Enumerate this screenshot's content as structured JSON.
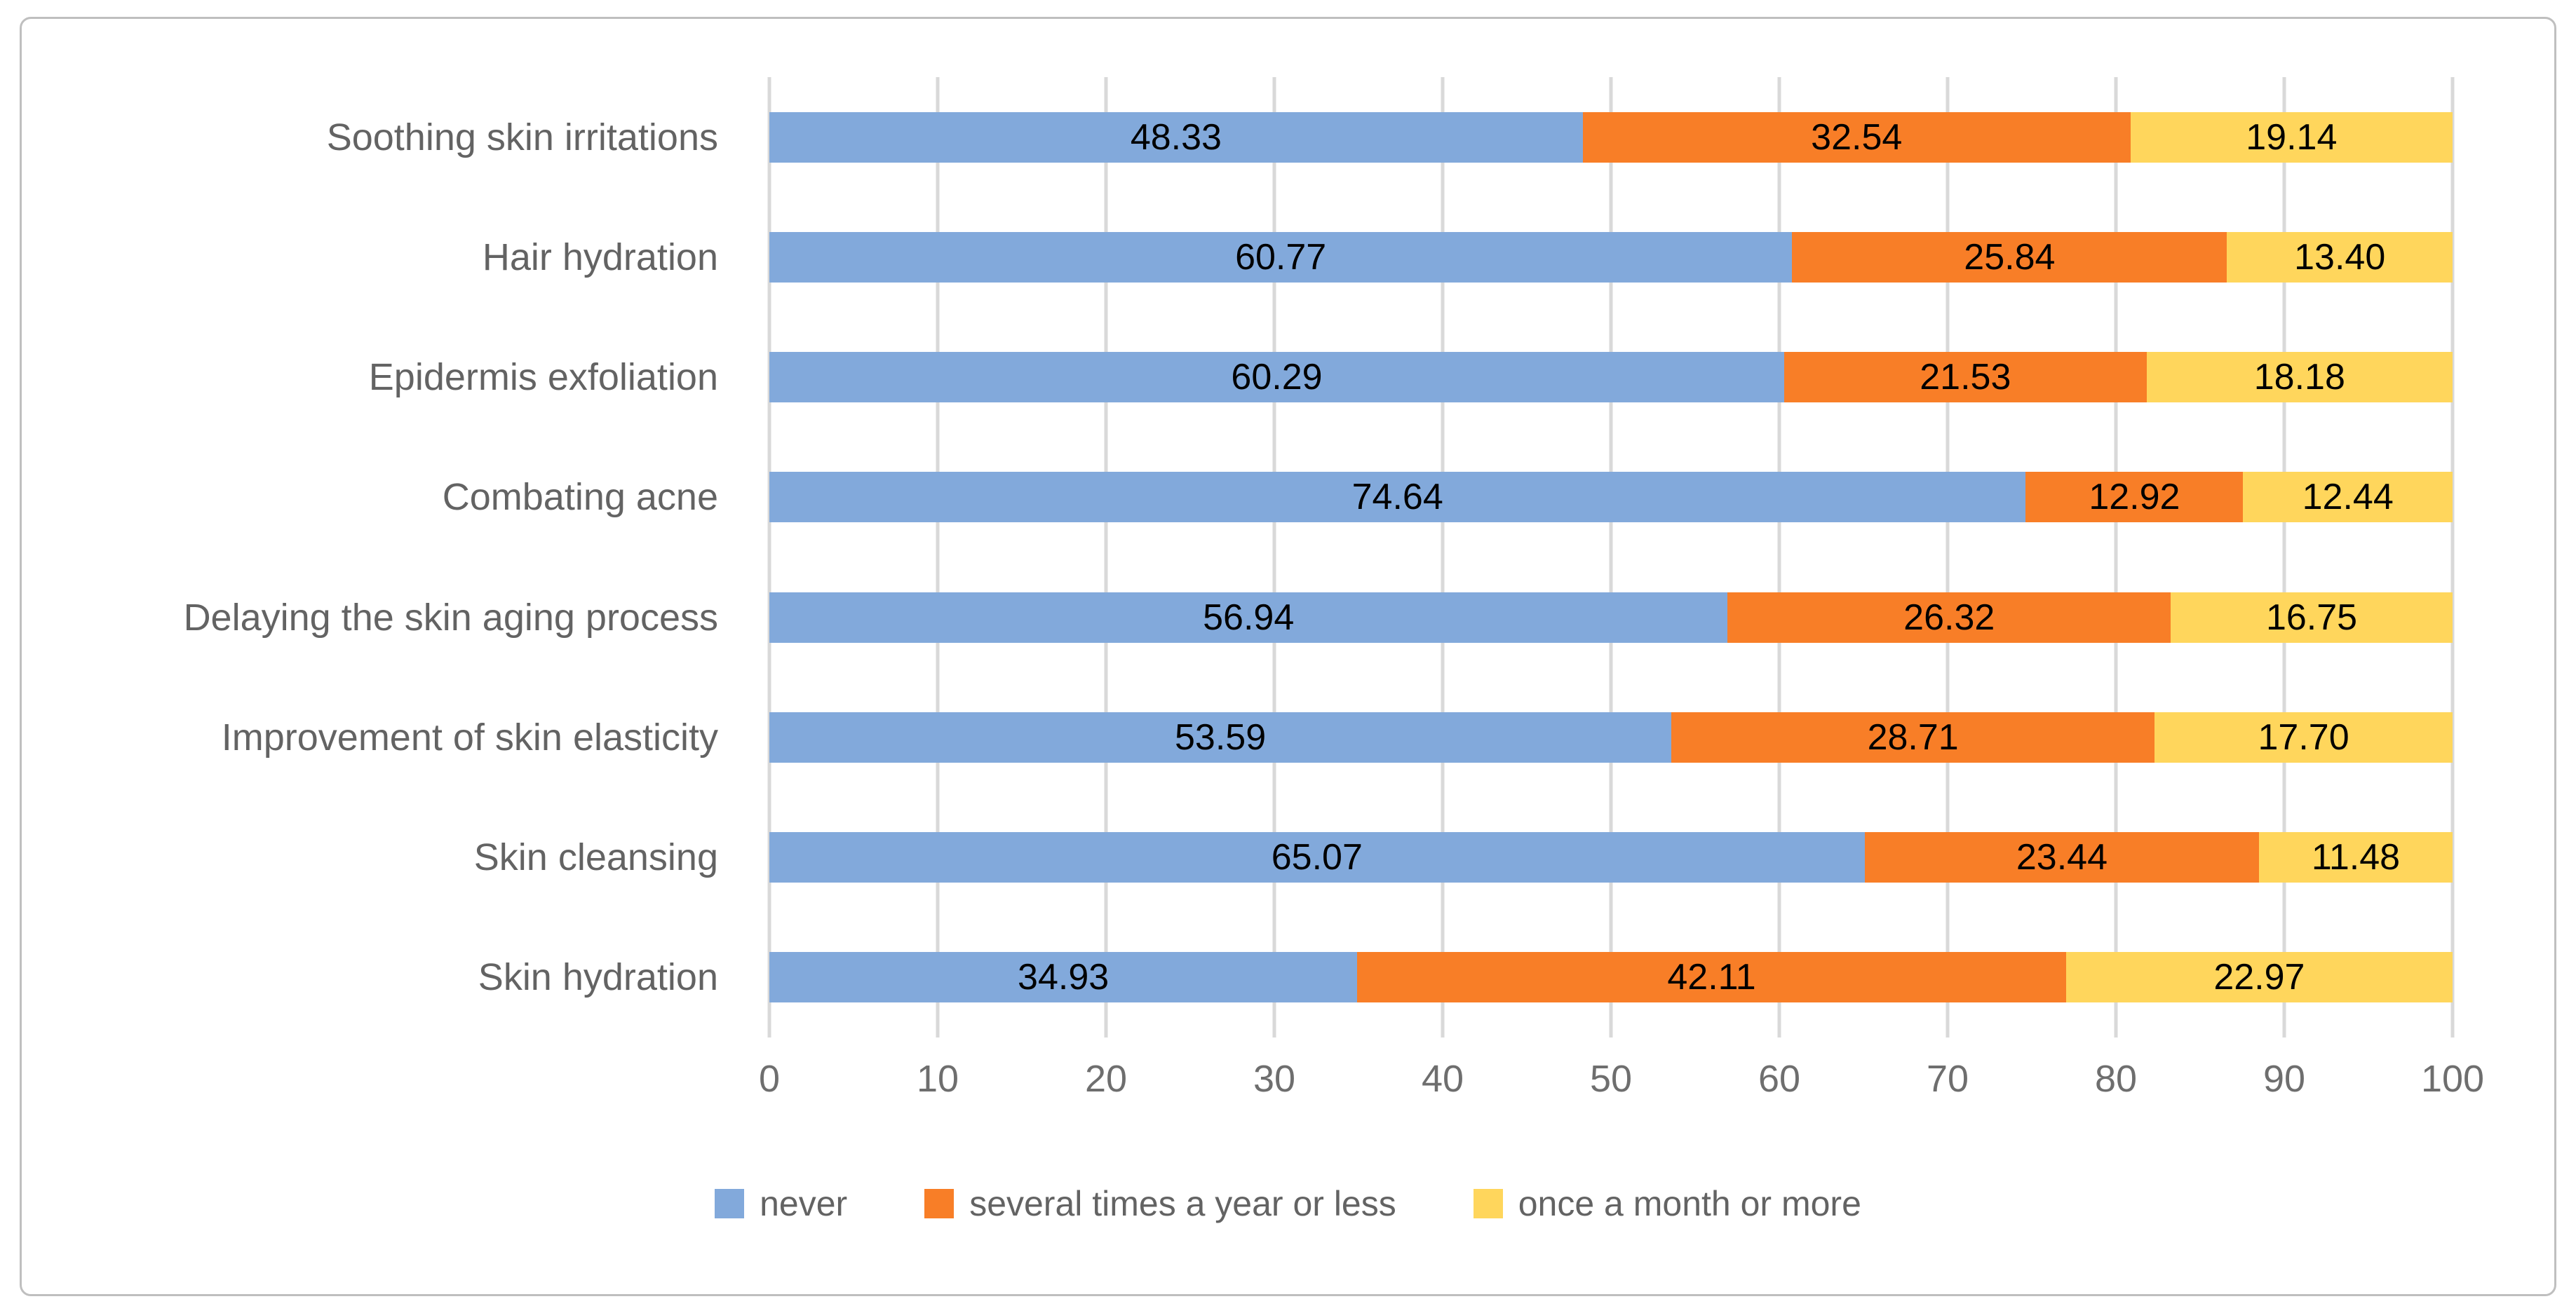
{
  "figure": {
    "background": "#FFFFFF",
    "border_color": "#BFBFBF"
  },
  "chart_data": {
    "type": "bar",
    "orientation": "horizontal",
    "stacked": true,
    "title": "",
    "xlabel": "",
    "ylabel": "",
    "categories": [
      "Soothing skin irritations",
      "Hair hydration",
      "Epidermis exfoliation",
      "Combating acne",
      "Delaying the skin aging process",
      "Improvement of skin elasticity",
      "Skin cleansing",
      "Skin hydration"
    ],
    "series": [
      {
        "name": "never",
        "color": "#82A9DB",
        "values": [
          48.33,
          60.77,
          60.29,
          74.64,
          56.94,
          53.59,
          65.07,
          34.93
        ]
      },
      {
        "name": "several times a year or less",
        "color": "#F87E27",
        "values": [
          32.54,
          25.84,
          21.53,
          12.92,
          26.32,
          28.71,
          23.44,
          42.11
        ]
      },
      {
        "name": "once a month or more",
        "color": "#FFD65C",
        "values": [
          19.14,
          13.4,
          18.18,
          12.44,
          16.75,
          17.7,
          11.48,
          22.97
        ]
      }
    ],
    "xlim": [
      0,
      100
    ],
    "xticks": [
      "0",
      "10",
      "20",
      "30",
      "40",
      "50",
      "60",
      "70",
      "80",
      "90",
      "100"
    ],
    "grid": true,
    "gridline_color": "#D9D9D9",
    "legend_position": "bottom",
    "value_labels": true,
    "value_label_decimals": 2,
    "value_label_color": "#000000",
    "axis_text_color": "#6E6E6E",
    "category_text_color": "#636363"
  }
}
